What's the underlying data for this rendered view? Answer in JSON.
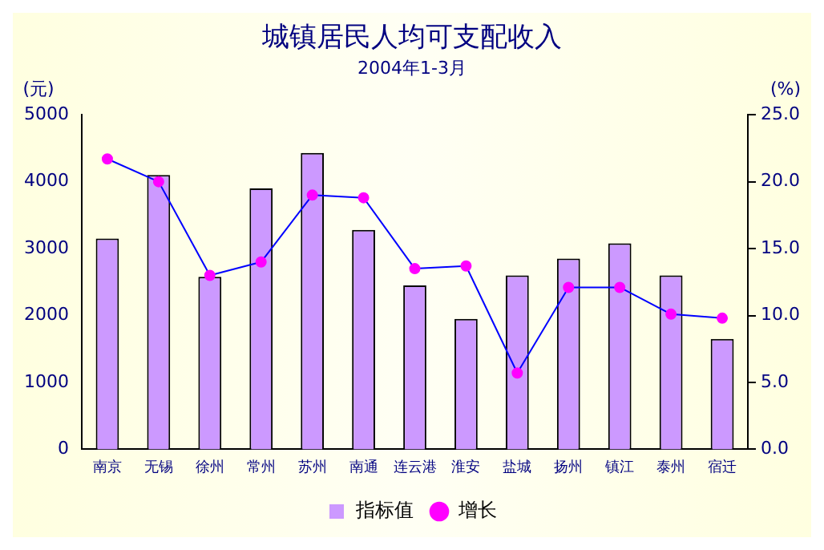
{
  "chart_data": {
    "type": "bar",
    "title": "城镇居民人均可支配收入",
    "subtitle": "2004年1-3月",
    "ylabel": "(元)",
    "y2label": "(%)",
    "categories": [
      "南京",
      "无锡",
      "徐州",
      "常州",
      "苏州",
      "南通",
      "连云港",
      "淮安",
      "盐城",
      "扬州",
      "镇江",
      "泰州",
      "宿迁"
    ],
    "series": [
      {
        "name": "指标值",
        "color": "#cc99ff",
        "values": [
          3150,
          4100,
          2580,
          3900,
          4430,
          3280,
          2450,
          1950,
          2600,
          2850,
          3080,
          2600,
          1650
        ]
      },
      {
        "name": "增长",
        "type": "line",
        "axis": "y2",
        "color": "#0000ff",
        "marker": "circle",
        "values": [
          21.7,
          20.0,
          13.0,
          14.0,
          19.0,
          18.8,
          13.5,
          13.7,
          5.7,
          12.1,
          12.1,
          10.1,
          9.8
        ]
      }
    ],
    "ylim": [
      0,
      5000
    ],
    "yticks": [
      0,
      1000,
      2000,
      3000,
      4000,
      5000
    ],
    "y2lim": [
      0,
      25
    ],
    "y2ticks": [
      {
        "value": 0,
        "label": "0.0"
      },
      {
        "value": 5,
        "label": "5.0"
      },
      {
        "value": 10,
        "label": "10.0"
      },
      {
        "value": 15,
        "label": "15.0"
      },
      {
        "value": 20,
        "label": "20.0"
      },
      {
        "value": 25,
        "label": "25.0"
      }
    ],
    "grid": false,
    "legend": "bottom"
  }
}
